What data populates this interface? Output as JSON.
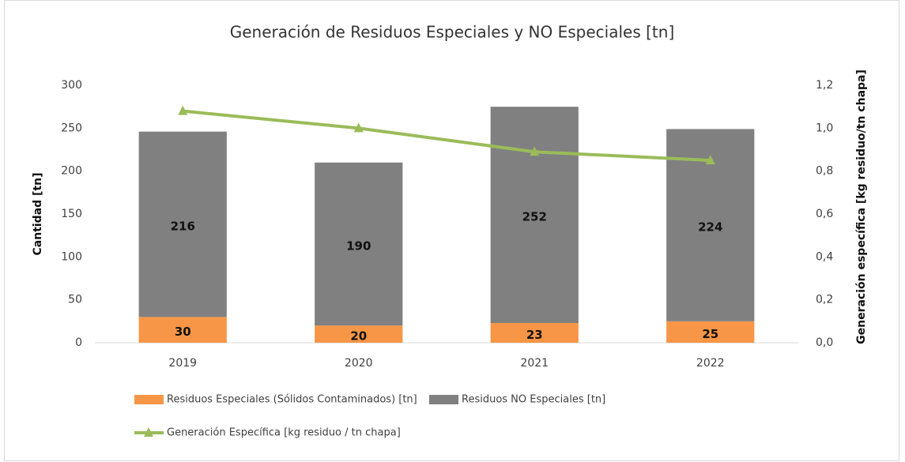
{
  "chart_data": {
    "type": "bar",
    "stacked": true,
    "title": "Generación de Residuos Especiales y NO Especiales [tn]",
    "categories": [
      "2019",
      "2020",
      "2021",
      "2022"
    ],
    "series": [
      {
        "name": "Residuos Especiales (Sólidos Contaminados) [tn]",
        "color": "#f79646",
        "values": [
          30,
          20,
          23,
          25
        ]
      },
      {
        "name": "Residuos NO Especiales [tn]",
        "color": "#808080",
        "values": [
          216,
          190,
          252,
          224
        ]
      },
      {
        "name": "Generación Específica [kg residuo / tn chapa]",
        "color": "#9bbb59",
        "type": "line",
        "axis": "y2",
        "marker": "triangle",
        "values": [
          1.08,
          1.0,
          0.89,
          0.85
        ]
      }
    ],
    "y_label": "Cantidad [tn]",
    "y2_label": "Generación específica [kg residuo/tn chapa]",
    "ylim": [
      0,
      300
    ],
    "yticks": [
      0,
      50,
      100,
      150,
      200,
      250,
      300
    ],
    "y2lim": [
      0,
      1.2
    ],
    "y2ticks": [
      {
        "value": 0,
        "label": "0,0"
      },
      {
        "value": 0.2,
        "label": "0,2"
      },
      {
        "value": 0.4,
        "label": "0,4"
      },
      {
        "value": 0.6,
        "label": "0,6"
      },
      {
        "value": 0.8,
        "label": "0,8"
      },
      {
        "value": 1.0,
        "label": "1,0"
      },
      {
        "value": 1.2,
        "label": "1,2"
      }
    ],
    "grid": false,
    "legend": "bottom"
  }
}
